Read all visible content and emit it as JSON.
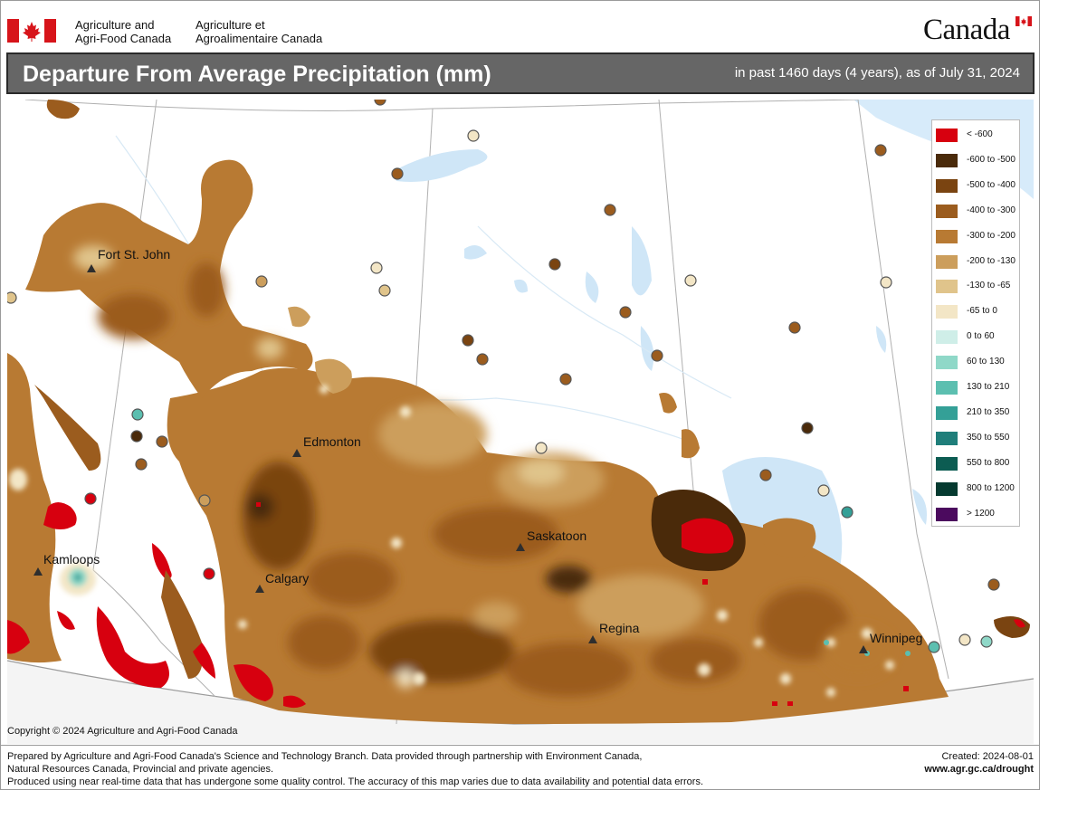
{
  "header": {
    "agency_en_line1": "Agriculture and",
    "agency_en_line2": "Agri-Food Canada",
    "agency_fr_line1": "Agriculture et",
    "agency_fr_line2": "Agroalimentaire Canada",
    "wordmark": "Canada"
  },
  "title_bar": {
    "title": "Departure From Average Precipitation (mm)",
    "subtitle": "in past 1460 days (4 years), as of July 31, 2024"
  },
  "map": {
    "cities": [
      {
        "name": "Fort St. John"
      },
      {
        "name": "Edmonton"
      },
      {
        "name": "Kamloops"
      },
      {
        "name": "Calgary"
      },
      {
        "name": "Saskatoon"
      },
      {
        "name": "Regina"
      },
      {
        "name": "Winnipeg"
      }
    ],
    "legend": [
      {
        "label": "< -600",
        "color": "#d7000f"
      },
      {
        "label": "-600 to -500",
        "color": "#4a2a0a"
      },
      {
        "label": "-500 to -400",
        "color": "#7a4411"
      },
      {
        "label": "-400 to -300",
        "color": "#9b5c1e"
      },
      {
        "label": "-300 to -200",
        "color": "#b87a33"
      },
      {
        "label": "-200 to -130",
        "color": "#cc9e5c"
      },
      {
        "label": "-130 to -65",
        "color": "#e0c48b"
      },
      {
        "label": "-65 to 0",
        "color": "#f3e6c6"
      },
      {
        "label": "0 to 60",
        "color": "#cfeee8"
      },
      {
        "label": "60 to 130",
        "color": "#8fd8c8"
      },
      {
        "label": "130 to 210",
        "color": "#5cbfb0"
      },
      {
        "label": "210 to 350",
        "color": "#34a097"
      },
      {
        "label": "350 to 550",
        "color": "#1f7e7a"
      },
      {
        "label": "550 to 800",
        "color": "#0c5c52"
      },
      {
        "label": "800 to 1200",
        "color": "#053a30"
      },
      {
        "label": "> 1200",
        "color": "#4b0a5e"
      }
    ]
  },
  "footer": {
    "copyright": "Copyright © 2024 Agriculture and Agri-Food Canada",
    "line1": "Prepared by Agriculture and Agri-Food Canada's Science and Technology Branch. Data provided through partnership with Environment Canada,",
    "line2": "Natural Resources Canada, Provincial and private agencies.",
    "line3": "Produced using near real-time data that has undergone some quality control. The accuracy of this map varies due to data availability and potential data errors.",
    "created": "Created: 2024-08-01",
    "website": "www.agr.gc.ca/drought"
  }
}
